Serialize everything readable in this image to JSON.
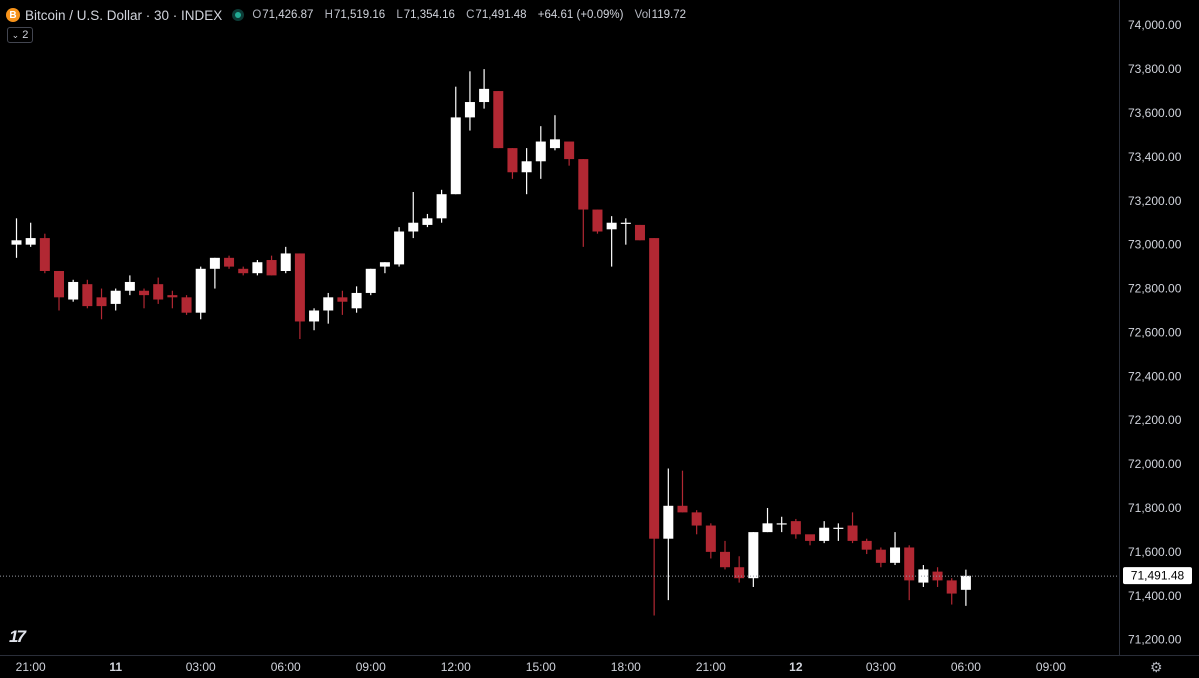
{
  "header": {
    "symbol_title": "Bitcoin / U.S. Dollar · 30 · INDEX",
    "logo_glyph": "B",
    "ohlc": {
      "o_key": "O",
      "o_val": "71,426.87",
      "h_key": "H",
      "h_val": "71,519.16",
      "l_key": "L",
      "l_val": "71,354.16",
      "c_key": "C",
      "c_val": "71,491.48",
      "change": "+64.61 (+0.09%)",
      "vol_key": "Vol",
      "vol_val": "119.72"
    },
    "collapse_count": "2"
  },
  "colors": {
    "background": "#000000",
    "up": "#ffffff",
    "down": "#b22833",
    "axis_text": "#d1d4dc",
    "grid_border": "#2a2e39",
    "price_line": "#9598a1"
  },
  "watermark": "17",
  "chart_data": {
    "type": "candlestick",
    "y_axis": {
      "ticks": [
        "74,000.00",
        "73,800.00",
        "73,600.00",
        "73,400.00",
        "73,200.00",
        "73,000.00",
        "72,800.00",
        "72,600.00",
        "72,400.00",
        "72,200.00",
        "72,000.00",
        "71,800.00",
        "71,600.00",
        "71,400.00",
        "71,200.00"
      ],
      "tick_values": [
        74000,
        73800,
        73600,
        73400,
        73200,
        73000,
        72800,
        72600,
        72400,
        72200,
        72000,
        71800,
        71600,
        71400,
        71200
      ],
      "range": [
        71130,
        74115
      ]
    },
    "x_axis": {
      "labels": [
        {
          "text": "21:00",
          "i": 2,
          "bold": false
        },
        {
          "text": "11",
          "i": 8,
          "bold": true
        },
        {
          "text": "03:00",
          "i": 14,
          "bold": false
        },
        {
          "text": "06:00",
          "i": 20,
          "bold": false
        },
        {
          "text": "09:00",
          "i": 26,
          "bold": false
        },
        {
          "text": "12:00",
          "i": 32,
          "bold": false
        },
        {
          "text": "15:00",
          "i": 38,
          "bold": false
        },
        {
          "text": "18:00",
          "i": 44,
          "bold": false
        },
        {
          "text": "21:00",
          "i": 50,
          "bold": false
        },
        {
          "text": "12",
          "i": 56,
          "bold": true
        },
        {
          "text": "03:00",
          "i": 62,
          "bold": false
        },
        {
          "text": "06:00",
          "i": 68,
          "bold": false
        },
        {
          "text": "09:00",
          "i": 74,
          "bold": false
        }
      ],
      "candle_index_of_first": 1
    },
    "last_price_label": "71,491.48",
    "last_price": 71491.48,
    "candles": [
      {
        "o": 73000,
        "h": 73120,
        "l": 72940,
        "c": 73020
      },
      {
        "o": 73000,
        "h": 73100,
        "l": 72990,
        "c": 73030
      },
      {
        "o": 73030,
        "h": 73050,
        "l": 72870,
        "c": 72880
      },
      {
        "o": 72880,
        "h": 72880,
        "l": 72700,
        "c": 72760
      },
      {
        "o": 72750,
        "h": 72840,
        "l": 72740,
        "c": 72830
      },
      {
        "o": 72820,
        "h": 72840,
        "l": 72710,
        "c": 72720
      },
      {
        "o": 72760,
        "h": 72800,
        "l": 72660,
        "c": 72720
      },
      {
        "o": 72730,
        "h": 72800,
        "l": 72700,
        "c": 72790
      },
      {
        "o": 72790,
        "h": 72860,
        "l": 72770,
        "c": 72830
      },
      {
        "o": 72790,
        "h": 72800,
        "l": 72710,
        "c": 72770
      },
      {
        "o": 72820,
        "h": 72850,
        "l": 72730,
        "c": 72750
      },
      {
        "o": 72770,
        "h": 72790,
        "l": 72710,
        "c": 72760
      },
      {
        "o": 72760,
        "h": 72770,
        "l": 72680,
        "c": 72690
      },
      {
        "o": 72690,
        "h": 72900,
        "l": 72660,
        "c": 72890
      },
      {
        "o": 72890,
        "h": 72940,
        "l": 72800,
        "c": 72940
      },
      {
        "o": 72940,
        "h": 72950,
        "l": 72890,
        "c": 72900
      },
      {
        "o": 72890,
        "h": 72900,
        "l": 72860,
        "c": 72870
      },
      {
        "o": 72870,
        "h": 72930,
        "l": 72860,
        "c": 72920
      },
      {
        "o": 72930,
        "h": 72950,
        "l": 72860,
        "c": 72860
      },
      {
        "o": 72880,
        "h": 72990,
        "l": 72870,
        "c": 72960
      },
      {
        "o": 72960,
        "h": 72960,
        "l": 72570,
        "c": 72650
      },
      {
        "o": 72650,
        "h": 72710,
        "l": 72610,
        "c": 72700
      },
      {
        "o": 72700,
        "h": 72780,
        "l": 72640,
        "c": 72760
      },
      {
        "o": 72760,
        "h": 72790,
        "l": 72680,
        "c": 72740
      },
      {
        "o": 72710,
        "h": 72810,
        "l": 72690,
        "c": 72780
      },
      {
        "o": 72780,
        "h": 72890,
        "l": 72770,
        "c": 72890
      },
      {
        "o": 72900,
        "h": 72920,
        "l": 72870,
        "c": 72920
      },
      {
        "o": 72910,
        "h": 73080,
        "l": 72900,
        "c": 73060
      },
      {
        "o": 73060,
        "h": 73240,
        "l": 73030,
        "c": 73100
      },
      {
        "o": 73090,
        "h": 73140,
        "l": 73080,
        "c": 73120
      },
      {
        "o": 73120,
        "h": 73250,
        "l": 73100,
        "c": 73230
      },
      {
        "o": 73230,
        "h": 73720,
        "l": 73230,
        "c": 73580
      },
      {
        "o": 73580,
        "h": 73790,
        "l": 73520,
        "c": 73650
      },
      {
        "o": 73650,
        "h": 73800,
        "l": 73620,
        "c": 73710
      },
      {
        "o": 73700,
        "h": 73700,
        "l": 73440,
        "c": 73440
      },
      {
        "o": 73440,
        "h": 73440,
        "l": 73300,
        "c": 73330
      },
      {
        "o": 73330,
        "h": 73440,
        "l": 73230,
        "c": 73380
      },
      {
        "o": 73380,
        "h": 73540,
        "l": 73300,
        "c": 73470
      },
      {
        "o": 73440,
        "h": 73590,
        "l": 73430,
        "c": 73480
      },
      {
        "o": 73470,
        "h": 73460,
        "l": 73360,
        "c": 73390
      },
      {
        "o": 73390,
        "h": 73390,
        "l": 72990,
        "c": 73160
      },
      {
        "o": 73160,
        "h": 73160,
        "l": 73050,
        "c": 73060
      },
      {
        "o": 73070,
        "h": 73130,
        "l": 72900,
        "c": 73100
      },
      {
        "o": 73100,
        "h": 73120,
        "l": 73000,
        "c": 73100
      },
      {
        "o": 73090,
        "h": 73090,
        "l": 73020,
        "c": 73020
      },
      {
        "o": 73030,
        "h": 73030,
        "l": 71310,
        "c": 71660
      },
      {
        "o": 71660,
        "h": 71980,
        "l": 71380,
        "c": 71810
      },
      {
        "o": 71810,
        "h": 71970,
        "l": 71780,
        "c": 71780
      },
      {
        "o": 71780,
        "h": 71790,
        "l": 71680,
        "c": 71720
      },
      {
        "o": 71720,
        "h": 71730,
        "l": 71570,
        "c": 71600
      },
      {
        "o": 71600,
        "h": 71650,
        "l": 71520,
        "c": 71530
      },
      {
        "o": 71530,
        "h": 71580,
        "l": 71460,
        "c": 71480
      },
      {
        "o": 71480,
        "h": 71690,
        "l": 71440,
        "c": 71690
      },
      {
        "o": 71690,
        "h": 71800,
        "l": 71690,
        "c": 71730
      },
      {
        "o": 71730,
        "h": 71760,
        "l": 71690,
        "c": 71730
      },
      {
        "o": 71740,
        "h": 71750,
        "l": 71660,
        "c": 71680
      },
      {
        "o": 71680,
        "h": 71670,
        "l": 71630,
        "c": 71650
      },
      {
        "o": 71650,
        "h": 71740,
        "l": 71640,
        "c": 71710
      },
      {
        "o": 71710,
        "h": 71730,
        "l": 71650,
        "c": 71710
      },
      {
        "o": 71720,
        "h": 71780,
        "l": 71640,
        "c": 71650
      },
      {
        "o": 71650,
        "h": 71660,
        "l": 71590,
        "c": 71610
      },
      {
        "o": 71610,
        "h": 71620,
        "l": 71530,
        "c": 71550
      },
      {
        "o": 71550,
        "h": 71690,
        "l": 71540,
        "c": 71620
      },
      {
        "o": 71620,
        "h": 71630,
        "l": 71380,
        "c": 71470
      },
      {
        "o": 71460,
        "h": 71540,
        "l": 71440,
        "c": 71520
      },
      {
        "o": 71510,
        "h": 71530,
        "l": 71440,
        "c": 71470
      },
      {
        "o": 71470,
        "h": 71480,
        "l": 71360,
        "c": 71410
      },
      {
        "o": 71427,
        "h": 71519,
        "l": 71354,
        "c": 71491
      }
    ]
  }
}
